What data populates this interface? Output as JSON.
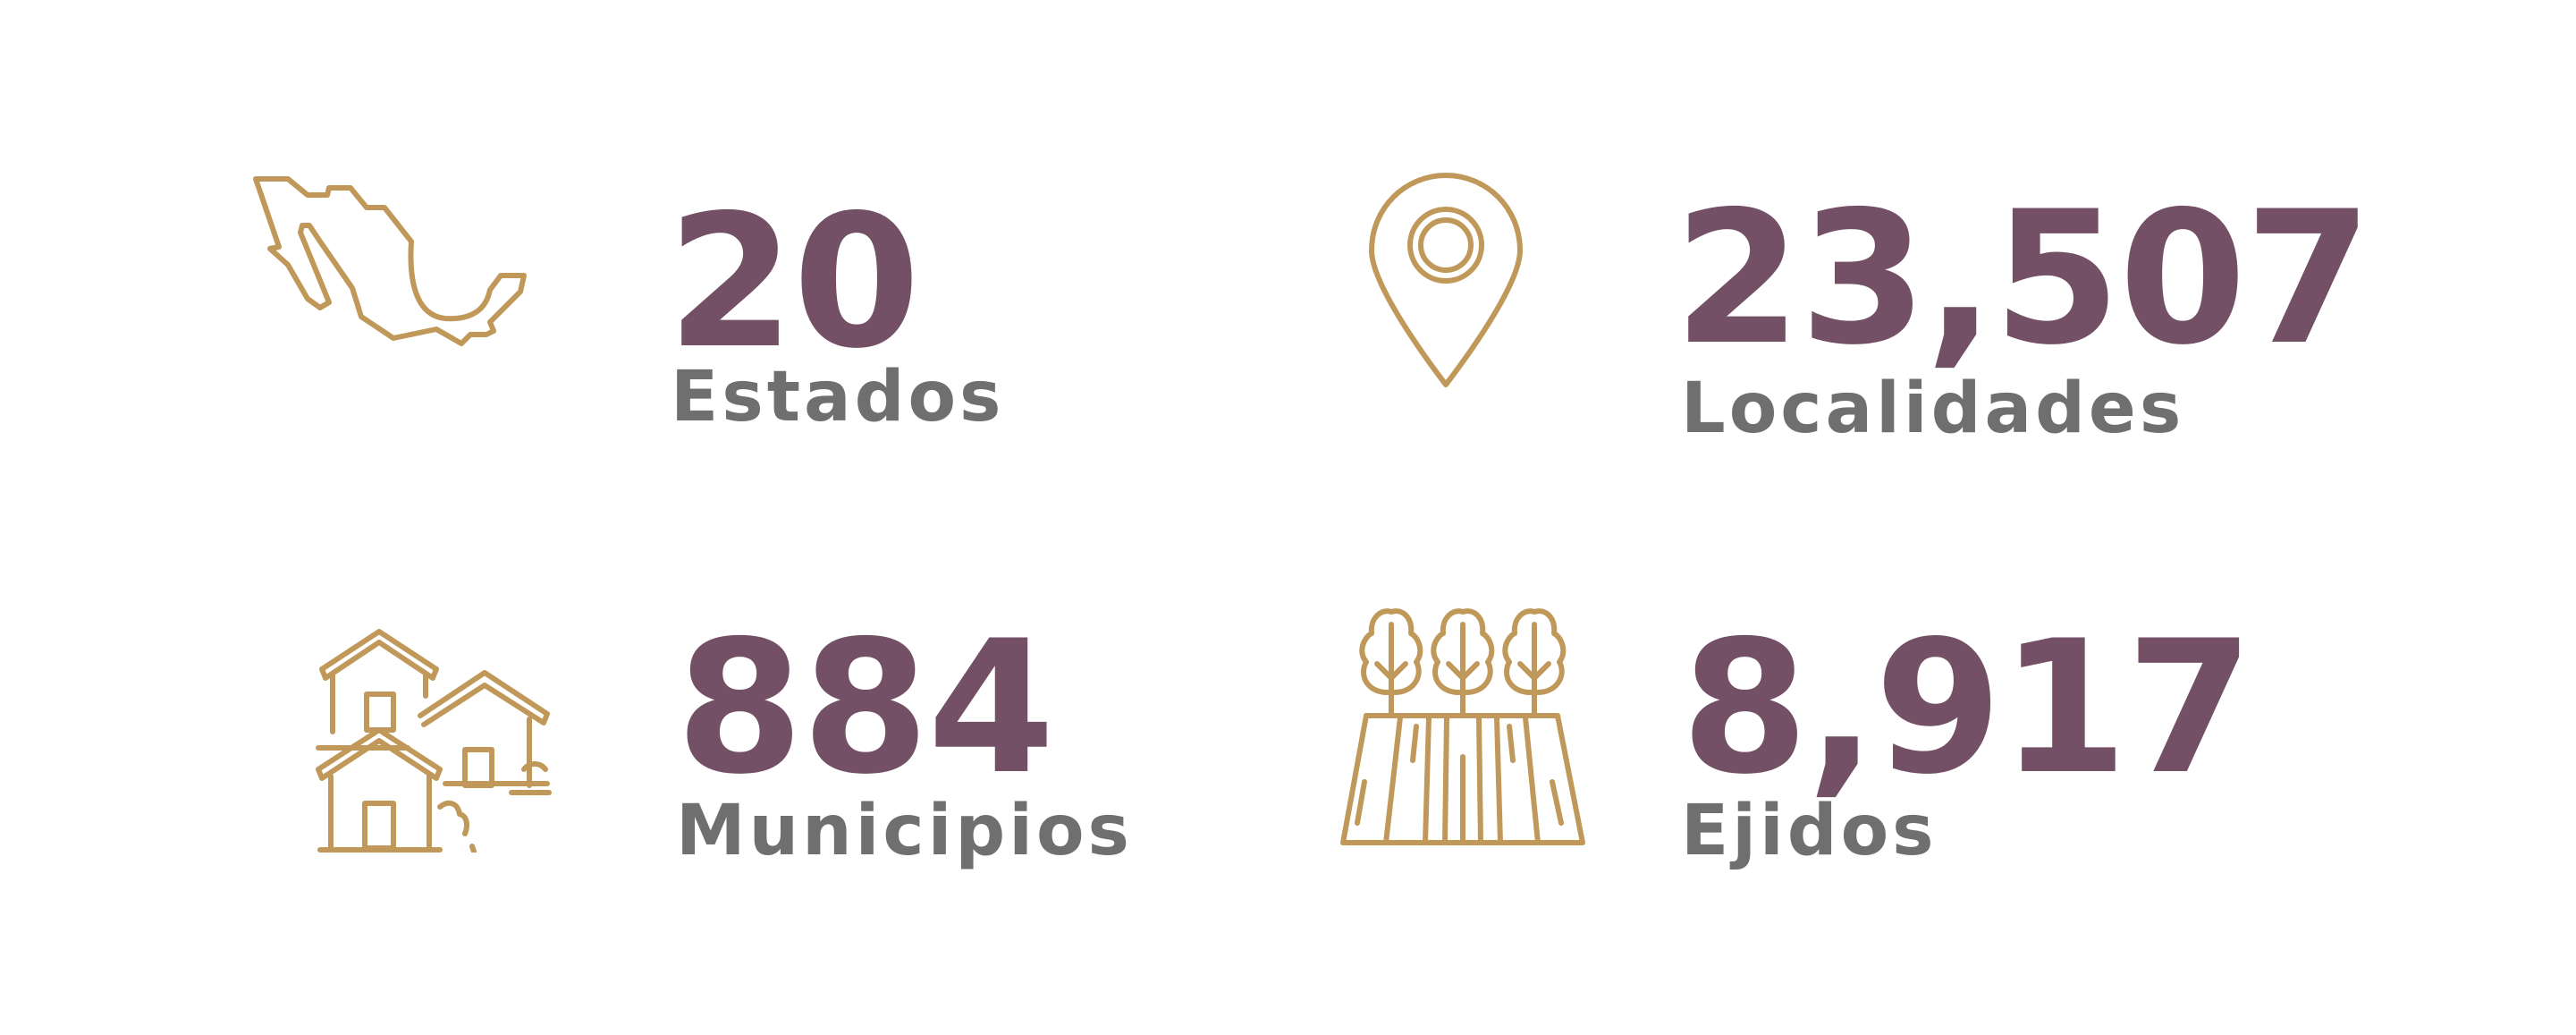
{
  "colors": {
    "icon": "#c0995a",
    "value": "#735066",
    "label": "#6f6f6f",
    "background": "#ffffff"
  },
  "stats": [
    {
      "icon": "mexico-map-icon",
      "value": "20",
      "label": "Estados"
    },
    {
      "icon": "location-pin-icon",
      "value": "23,507",
      "label": "Localidades"
    },
    {
      "icon": "houses-icon",
      "value": "884",
      "label": "Municipios"
    },
    {
      "icon": "trees-field-icon",
      "value": "8,917",
      "label": "Ejidos"
    }
  ]
}
